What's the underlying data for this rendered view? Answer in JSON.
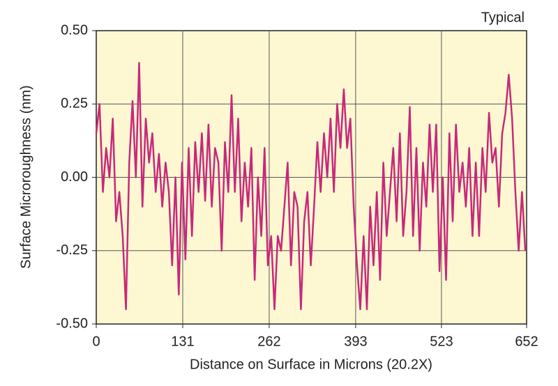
{
  "chart_data": {
    "type": "line",
    "annotation": "Typical",
    "x_label": "Distance on Surface in Microns (20.2X)",
    "y_label": "Surface Microroughness (nm)",
    "color": "#c8287a",
    "background": "#fdf8d2",
    "grid": true,
    "xlim": [
      0,
      652
    ],
    "xticks": [
      0,
      131,
      262,
      393,
      523,
      652
    ],
    "ylim": [
      -0.5,
      0.5
    ],
    "yticks": [
      {
        "value": -0.5,
        "label": "-0.50"
      },
      -0.25,
      {
        "value": 0,
        "label": "0.00"
      },
      0.25,
      {
        "value": 0.5,
        "label": "0.50"
      }
    ],
    "x": [
      0,
      5,
      10,
      15,
      20,
      25,
      30,
      35,
      40,
      45,
      50,
      55,
      60,
      65,
      70,
      75,
      80,
      85,
      90,
      95,
      100,
      105,
      110,
      115,
      120,
      125,
      130,
      135,
      140,
      145,
      150,
      155,
      160,
      165,
      170,
      175,
      180,
      185,
      190,
      195,
      200,
      205,
      210,
      215,
      220,
      225,
      230,
      235,
      240,
      245,
      250,
      255,
      260,
      265,
      270,
      275,
      280,
      285,
      290,
      295,
      300,
      305,
      310,
      315,
      320,
      325,
      330,
      335,
      340,
      345,
      350,
      355,
      360,
      365,
      370,
      375,
      380,
      385,
      390,
      395,
      400,
      405,
      410,
      415,
      420,
      425,
      430,
      435,
      440,
      445,
      450,
      455,
      460,
      465,
      470,
      475,
      480,
      485,
      490,
      495,
      500,
      505,
      510,
      515,
      520,
      525,
      530,
      535,
      540,
      545,
      550,
      555,
      560,
      565,
      570,
      575,
      580,
      585,
      590,
      595,
      600,
      605,
      610,
      615,
      620,
      625,
      630,
      635,
      640,
      645,
      650
    ],
    "values": [
      0.15,
      0.25,
      -0.05,
      0.1,
      0.0,
      0.2,
      -0.15,
      -0.05,
      -0.2,
      -0.45,
      0.05,
      0.26,
      0.0,
      0.39,
      -0.1,
      0.2,
      0.05,
      0.15,
      -0.05,
      0.08,
      -0.1,
      0.05,
      -0.05,
      -0.3,
      0.0,
      -0.4,
      0.05,
      -0.28,
      0.1,
      -0.2,
      0.12,
      -0.05,
      0.15,
      -0.08,
      0.18,
      -0.1,
      0.1,
      0.05,
      -0.25,
      0.12,
      -0.05,
      0.28,
      -0.05,
      0.2,
      -0.15,
      0.05,
      -0.1,
      0.1,
      -0.35,
      0.0,
      -0.2,
      0.1,
      -0.3,
      -0.2,
      -0.45,
      -0.2,
      -0.25,
      -0.1,
      0.05,
      -0.3,
      -0.05,
      -0.1,
      -0.45,
      -0.15,
      -0.05,
      -0.3,
      -0.1,
      0.12,
      -0.05,
      0.15,
      0.0,
      0.2,
      -0.05,
      0.25,
      0.1,
      0.3,
      0.1,
      0.2,
      -0.1,
      -0.3,
      -0.45,
      -0.2,
      -0.45,
      -0.1,
      -0.3,
      -0.05,
      -0.35,
      0.05,
      -0.2,
      -0.05,
      0.1,
      -0.15,
      0.15,
      -0.2,
      -0.05,
      0.24,
      -0.2,
      0.1,
      -0.25,
      0.05,
      -0.1,
      0.18,
      -0.05,
      0.18,
      -0.32,
      0.0,
      -0.35,
      0.15,
      -0.15,
      0.18,
      -0.05,
      0.05,
      -0.1,
      0.1,
      -0.2,
      0.05,
      -0.2,
      0.1,
      -0.05,
      0.22,
      0.05,
      0.1,
      -0.1,
      0.15,
      0.22,
      0.35,
      0.2,
      -0.05,
      -0.25,
      -0.05,
      -0.25
    ]
  }
}
